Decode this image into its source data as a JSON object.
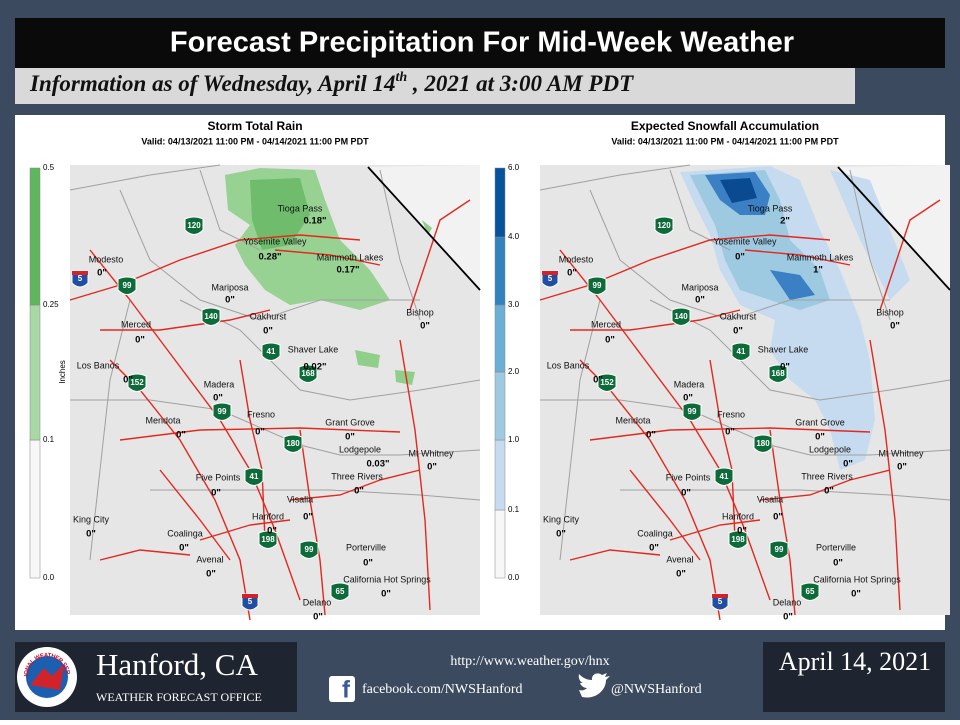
{
  "header": {
    "title": "Forecast Precipitation For Mid-Week Weather",
    "subtitle": {
      "before": "Information as of  Wednesday, April 14",
      "superscript": "th",
      "after": " , 2021 at 3:00 AM PDT"
    }
  },
  "highway_shields": [
    "120",
    "5",
    "99",
    "140",
    "41",
    "168",
    "152",
    "99",
    "180",
    "41",
    "198",
    "99",
    "65",
    "5"
  ],
  "maps": [
    {
      "title": "Storm Total Rain",
      "valid": "Valid: 04/13/2021 11:00 PM - 04/14/2021 11:00 PM PDT",
      "legend": {
        "label": "Inches",
        "ticks": [
          "0.5",
          "0.25",
          "0.1",
          "0.0"
        ]
      },
      "places": [
        {
          "name": "Tioga Pass",
          "value": "0.18\""
        },
        {
          "name": "Yosemite Valley",
          "value": "0.28\""
        },
        {
          "name": "Mammoth Lakes",
          "value": "0.17\""
        },
        {
          "name": "Modesto",
          "value": "0\""
        },
        {
          "name": "Mariposa",
          "value": "0\""
        },
        {
          "name": "Merced",
          "value": "0\""
        },
        {
          "name": "Oakhurst",
          "value": "0\""
        },
        {
          "name": "Bishop",
          "value": "0\""
        },
        {
          "name": "Shaver Lake",
          "value": "0.02\""
        },
        {
          "name": "Los Banos",
          "value": "0\""
        },
        {
          "name": "Madera",
          "value": "0\""
        },
        {
          "name": "Mendota",
          "value": "0\""
        },
        {
          "name": "Fresno",
          "value": "0\""
        },
        {
          "name": "Grant Grove",
          "value": "0\""
        },
        {
          "name": "Lodgepole",
          "value": "0.03\""
        },
        {
          "name": "Mt Whitney",
          "value": "0\""
        },
        {
          "name": "Five Points",
          "value": "0\""
        },
        {
          "name": "Three Rivers",
          "value": "0\""
        },
        {
          "name": "Visalia",
          "value": "0\""
        },
        {
          "name": "Hanford",
          "value": "0\""
        },
        {
          "name": "King City",
          "value": "0\""
        },
        {
          "name": "Coalinga",
          "value": "0\""
        },
        {
          "name": "Avenal",
          "value": "0\""
        },
        {
          "name": "Porterville",
          "value": "0\""
        },
        {
          "name": "California Hot Springs",
          "value": "0\""
        },
        {
          "name": "Delano",
          "value": "0\""
        }
      ]
    },
    {
      "title": "Expected Snowfall Accumulation",
      "valid": "Valid: 04/13/2021 11:00 PM - 04/14/2021 11:00 PM PDT",
      "legend": {
        "ticks": [
          "6.0",
          "4.0",
          "3.0",
          "2.0",
          "1.0",
          "0.1",
          "0.0"
        ]
      },
      "places": [
        {
          "name": "Tioga Pass",
          "value": "2\""
        },
        {
          "name": "Yosemite Valley",
          "value": "0\""
        },
        {
          "name": "Mammoth Lakes",
          "value": "1\""
        },
        {
          "name": "Modesto",
          "value": "0\""
        },
        {
          "name": "Mariposa",
          "value": "0\""
        },
        {
          "name": "Merced",
          "value": "0\""
        },
        {
          "name": "Oakhurst",
          "value": "0\""
        },
        {
          "name": "Bishop",
          "value": "0\""
        },
        {
          "name": "Shaver Lake",
          "value": "0\""
        },
        {
          "name": "Los Banos",
          "value": "0\""
        },
        {
          "name": "Madera",
          "value": "0\""
        },
        {
          "name": "Mendota",
          "value": "0\""
        },
        {
          "name": "Fresno",
          "value": "0\""
        },
        {
          "name": "Grant Grove",
          "value": "0\""
        },
        {
          "name": "Lodgepole",
          "value": "0\""
        },
        {
          "name": "Mt Whitney",
          "value": "0\""
        },
        {
          "name": "Five Points",
          "value": "0\""
        },
        {
          "name": "Three Rivers",
          "value": "0\""
        },
        {
          "name": "Visalia",
          "value": "0\""
        },
        {
          "name": "Hanford",
          "value": "0\""
        },
        {
          "name": "King City",
          "value": "0\""
        },
        {
          "name": "Coalinga",
          "value": "0\""
        },
        {
          "name": "Avenal",
          "value": "0\""
        },
        {
          "name": "Porterville",
          "value": "0\""
        },
        {
          "name": "California Hot Springs",
          "value": "0\""
        },
        {
          "name": "Delano",
          "value": "0\""
        }
      ]
    }
  ],
  "footer": {
    "office": "Hanford, CA",
    "office_type": "WEATHER FORECAST OFFICE",
    "logo_text": "NATIONAL WEATHER SERVICE",
    "website": "http://www.weather.gov/hnx",
    "facebook": "facebook.com/NWSHanford",
    "twitter": "@NWSHanford",
    "date": "April 14, 2021"
  }
}
